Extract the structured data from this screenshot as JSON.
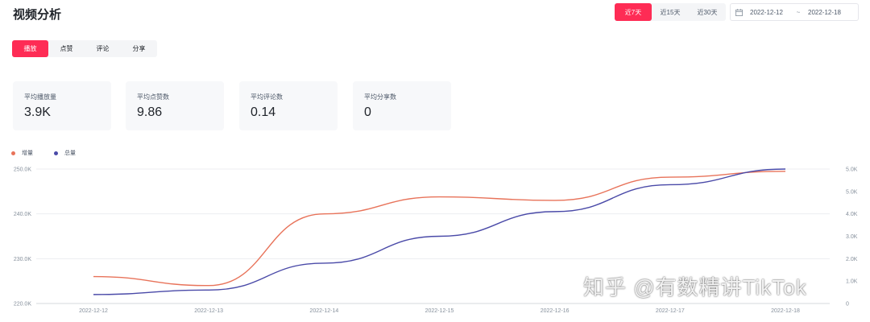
{
  "header": {
    "title": "视频分析"
  },
  "range": {
    "buttons": [
      "近7天",
      "近15天",
      "近30天"
    ],
    "active": 0
  },
  "date_picker": {
    "start": "2022-12-12",
    "separator": "~",
    "end": "2022-12-18"
  },
  "tabs": {
    "items": [
      "播放",
      "点赞",
      "评论",
      "分享"
    ],
    "active": 0
  },
  "stats": [
    {
      "label": "平均播放量",
      "value": "3.9K"
    },
    {
      "label": "平均点赞数",
      "value": "9.86"
    },
    {
      "label": "平均评论数",
      "value": "0.14"
    },
    {
      "label": "平均分享数",
      "value": "0"
    }
  ],
  "watermark": "知乎 @有数精讲TikTok",
  "colors": {
    "accent": "#fe2c55",
    "series_increment": "#e8735a",
    "series_total": "#4a4aa8"
  },
  "chart_data": {
    "type": "line",
    "x": [
      "2022-12-12",
      "2022-12-13",
      "2022-12-14",
      "2022-12-15",
      "2022-12-16",
      "2022-12-17",
      "2022-12-18"
    ],
    "y_left": {
      "ticks": [
        "220.0K",
        "230.0K",
        "240.0K",
        "250.0K"
      ],
      "range": [
        220000,
        250000
      ]
    },
    "y_right": {
      "ticks": [
        "0",
        "1.0K",
        "2.0K",
        "3.0K",
        "4.0K",
        "5.0K",
        "5.0K"
      ],
      "range": [
        0,
        6000
      ]
    },
    "series": [
      {
        "name": "增量",
        "axis": "left",
        "values": [
          226000,
          224000,
          240000,
          243800,
          243000,
          248200,
          249500
        ]
      },
      {
        "name": "总量",
        "axis": "right",
        "values": [
          400,
          600,
          1800,
          3000,
          4100,
          5300,
          6000
        ]
      }
    ],
    "legend": "top-left",
    "grid": true
  }
}
